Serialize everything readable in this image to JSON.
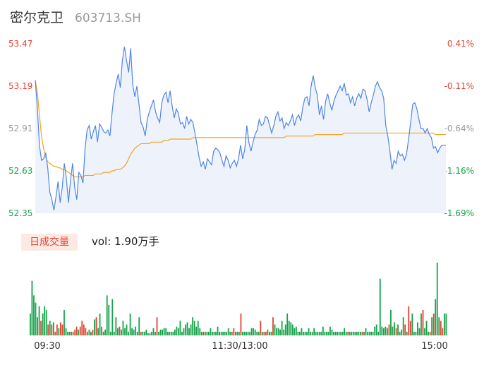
{
  "header": {
    "name": "密尔克卫",
    "code": "603713.SH"
  },
  "price_axis": {
    "left_labels": [
      "53.47",
      "53.19",
      "52.91",
      "52.63",
      "52.35"
    ],
    "right_labels": [
      "0.41%",
      "-0.11%",
      "-0.64%",
      "-1.16%",
      "-1.69%"
    ]
  },
  "time_axis": [
    "09:30",
    "11:30/13:00",
    "15:00"
  ],
  "volume": {
    "badge": "日成交量",
    "label": "vol: 1.90万手"
  },
  "colors": {
    "up": "#e5432f",
    "down": "#17a34a",
    "price_line": "#4e85e8",
    "avg_line": "#f3a321",
    "area": "#eef3fb",
    "muted": "#999999"
  },
  "chart_data": [
    {
      "type": "line",
      "title": "",
      "y_range": [
        52.35,
        53.47
      ],
      "series": [
        {
          "values": [
            53.23,
            53.05,
            52.8,
            52.7,
            52.71,
            52.75,
            52.65,
            52.49,
            52.44,
            52.37,
            52.46,
            52.56,
            52.42,
            52.52,
            52.68,
            52.58,
            52.42,
            52.57,
            52.68,
            52.52,
            52.44,
            52.62,
            52.6,
            52.55,
            52.78,
            52.9,
            52.93,
            52.84,
            52.89,
            52.93,
            52.82,
            52.94,
            52.92,
            52.89,
            52.88,
            52.9,
            52.86,
            53.01,
            53.14,
            53.21,
            53.27,
            53.18,
            53.36,
            53.45,
            53.36,
            53.28,
            53.44,
            53.2,
            53.12,
            53.19,
            53.07,
            52.95,
            52.92,
            52.86,
            52.97,
            53.02,
            53.06,
            53.1,
            53.02,
            52.98,
            52.95,
            53.08,
            53.13,
            53.15,
            53.08,
            53.16,
            53.06,
            52.98,
            53.04,
            53.01,
            52.94,
            52.95,
            52.91,
            52.99,
            52.94,
            52.97,
            52.95,
            52.88,
            52.8,
            52.72,
            52.66,
            52.69,
            52.64,
            52.71,
            52.69,
            52.67,
            52.76,
            52.78,
            52.77,
            52.75,
            52.7,
            52.66,
            52.73,
            52.7,
            52.65,
            52.68,
            52.7,
            52.66,
            52.71,
            52.8,
            52.71,
            52.77,
            52.93,
            52.82,
            52.76,
            52.82,
            52.87,
            52.9,
            52.97,
            52.93,
            52.94,
            52.99,
            52.98,
            52.93,
            52.88,
            52.93,
            52.99,
            53.02,
            52.96,
            52.98,
            52.91,
            52.95,
            52.93,
            52.96,
            53.0,
            52.93,
            52.98,
            53.0,
            52.96,
            53.05,
            53.11,
            53.12,
            53.06,
            53.19,
            53.26,
            53.18,
            53.13,
            53.0,
            53.06,
            52.97,
            53.09,
            53.14,
            53.08,
            53.03,
            53.09,
            53.13,
            53.16,
            53.19,
            53.16,
            53.21,
            53.13,
            53.14,
            53.08,
            53.12,
            53.06,
            53.11,
            53.14,
            53.11,
            53.17,
            53.16,
            53.1,
            53.02,
            53.08,
            53.13,
            53.19,
            53.22,
            53.18,
            53.16,
            53.11,
            52.93,
            52.86,
            52.76,
            52.64,
            52.7,
            52.68,
            52.76,
            52.73,
            52.74,
            52.7,
            52.74,
            52.84,
            52.95,
            53.07,
            53.08,
            53.04,
            52.97,
            52.91,
            52.91,
            52.88,
            52.91,
            52.87,
            52.85,
            52.78,
            52.79,
            52.75,
            52.78,
            52.8,
            52.8,
            52.8
          ]
        },
        {
          "values": [
            53.23,
            53.15,
            53.0,
            52.86,
            52.78,
            52.72,
            52.69,
            52.68,
            52.67,
            52.66,
            52.66,
            52.65,
            52.65,
            52.64,
            52.64,
            52.63,
            52.62,
            52.61,
            52.6,
            52.59,
            52.59,
            52.59,
            52.59,
            52.59,
            52.6,
            52.6,
            52.6,
            52.6,
            52.6,
            52.61,
            52.61,
            52.61,
            52.61,
            52.62,
            52.62,
            52.62,
            52.62,
            52.63,
            52.63,
            52.64,
            52.64,
            52.64,
            52.65,
            52.66,
            52.68,
            52.71,
            52.74,
            52.76,
            52.78,
            52.79,
            52.8,
            52.81,
            52.81,
            52.81,
            52.81,
            52.81,
            52.82,
            52.82,
            52.82,
            52.82,
            52.82,
            52.82,
            52.83,
            52.83,
            52.83,
            52.84,
            52.84,
            52.84,
            52.84,
            52.84,
            52.84,
            52.84,
            52.84,
            52.84,
            52.84,
            52.84,
            52.85,
            52.85,
            52.85,
            52.85,
            52.85,
            52.85,
            52.85,
            52.85,
            52.85,
            52.85,
            52.85,
            52.85,
            52.85,
            52.85,
            52.85,
            52.85,
            52.85,
            52.85,
            52.85,
            52.85,
            52.85,
            52.85,
            52.85,
            52.85,
            52.85,
            52.85,
            52.85,
            52.85,
            52.85,
            52.85,
            52.85,
            52.85,
            52.85,
            52.85,
            52.85,
            52.85,
            52.85,
            52.85,
            52.85,
            52.85,
            52.85,
            52.85,
            52.85,
            52.85,
            52.85,
            52.86,
            52.86,
            52.86,
            52.86,
            52.86,
            52.86,
            52.86,
            52.86,
            52.86,
            52.86,
            52.86,
            52.86,
            52.86,
            52.86,
            52.87,
            52.87,
            52.87,
            52.87,
            52.87,
            52.87,
            52.87,
            52.87,
            52.87,
            52.87,
            52.87,
            52.87,
            52.87,
            52.87,
            52.88,
            52.88,
            52.88,
            52.88,
            52.88,
            52.88,
            52.88,
            52.88,
            52.88,
            52.88,
            52.88,
            52.88,
            52.88,
            52.88,
            52.88,
            52.88,
            52.88,
            52.88,
            52.88,
            52.88,
            52.88,
            52.88,
            52.88,
            52.88,
            52.88,
            52.88,
            52.88,
            52.88,
            52.88,
            52.88,
            52.88,
            52.88,
            52.88,
            52.88,
            52.88,
            52.88,
            52.88,
            52.88,
            52.88,
            52.88,
            52.88,
            52.88,
            52.88,
            52.88,
            52.87,
            52.87,
            52.87,
            52.87,
            52.87,
            52.87
          ]
        }
      ]
    },
    {
      "type": "bar",
      "title": "",
      "ylim": [
        0,
        100
      ],
      "series": [
        {
          "values": [
            30,
            75,
            55,
            45,
            25,
            40,
            20,
            30,
            40,
            35,
            15,
            20,
            15,
            18,
            5,
            15,
            10,
            18,
            15,
            35,
            10,
            5,
            5,
            5,
            5,
            8,
            12,
            8,
            12,
            20,
            15,
            10,
            5,
            8,
            5,
            8,
            22,
            25,
            10,
            30,
            12,
            5,
            8,
            55,
            42,
            5,
            50,
            5,
            25,
            10,
            12,
            8,
            20,
            10,
            15,
            5,
            30,
            10,
            8,
            12,
            5,
            25,
            5,
            5,
            5,
            8,
            3,
            3,
            5,
            10,
            5,
            25,
            5,
            8,
            8,
            10,
            10,
            5,
            5,
            5,
            5,
            8,
            12,
            10,
            20,
            5,
            10,
            15,
            18,
            10,
            15,
            25,
            20,
            12,
            20,
            10,
            5,
            5,
            5,
            5,
            5,
            10,
            5,
            5,
            5,
            12,
            5,
            5,
            5,
            5,
            5,
            10,
            5,
            5,
            10,
            5,
            5,
            5,
            30,
            5,
            5,
            5,
            5,
            5,
            10,
            10,
            8,
            5,
            5,
            20,
            5,
            5,
            5,
            8,
            5,
            5,
            25,
            15,
            10,
            10,
            8,
            20,
            8,
            15,
            30,
            20,
            18,
            15,
            10,
            12,
            5,
            5,
            10,
            5,
            5,
            5,
            10,
            5,
            5,
            10,
            5,
            5,
            5,
            5,
            12,
            5,
            5,
            5,
            12,
            8,
            5,
            5,
            5,
            5,
            5,
            5,
            10,
            5,
            5,
            5,
            5,
            5,
            5,
            5,
            5,
            5,
            5,
            5,
            10,
            5,
            5,
            5,
            5,
            12,
            15,
            5,
            78,
            12,
            10,
            12,
            10,
            15,
            35,
            12,
            18,
            10,
            15,
            5,
            8,
            25,
            15,
            5,
            40,
            20,
            30,
            5,
            5,
            18,
            10,
            30,
            35,
            10,
            20,
            5,
            5,
            25,
            30,
            50,
            100,
            25,
            20,
            10,
            30,
            30
          ],
          "directions": [
            "d",
            "d",
            "d",
            "d",
            "d",
            "d",
            "u",
            "d",
            "d",
            "d",
            "u",
            "d",
            "u",
            "d",
            "u",
            "u",
            "d",
            "u",
            "u",
            "d",
            "d",
            "d",
            "d",
            "u",
            "d",
            "u",
            "u",
            "d",
            "u",
            "u",
            "u",
            "u",
            "u",
            "d",
            "d",
            "u",
            "d",
            "u",
            "d",
            "d",
            "u",
            "d",
            "d",
            "d",
            "d",
            "d",
            "d",
            "d",
            "d",
            "d",
            "u",
            "d",
            "d",
            "d",
            "d",
            "d",
            "d",
            "d",
            "d",
            "d",
            "d",
            "d",
            "u",
            "d",
            "d",
            "d",
            "d",
            "d",
            "d",
            "d",
            "d",
            "u",
            "d",
            "d",
            "d",
            "d",
            "d",
            "d",
            "d",
            "d",
            "d",
            "d",
            "d",
            "d",
            "d",
            "d",
            "d",
            "d",
            "d",
            "d",
            "d",
            "d",
            "d",
            "d",
            "d",
            "d",
            "d",
            "d",
            "u",
            "d",
            "d",
            "d",
            "d",
            "d",
            "d",
            "d",
            "d",
            "d",
            "d",
            "d",
            "d",
            "d",
            "d",
            "u",
            "u",
            "d",
            "d",
            "d",
            "u",
            "d",
            "d",
            "d",
            "d",
            "d",
            "d",
            "d",
            "d",
            "d",
            "d",
            "u",
            "d",
            "u",
            "u",
            "d",
            "d",
            "d",
            "u",
            "d",
            "d",
            "d",
            "d",
            "d",
            "d",
            "d",
            "d",
            "d",
            "d",
            "d",
            "d",
            "d",
            "d",
            "d",
            "d",
            "d",
            "d",
            "d",
            "d",
            "d",
            "d",
            "d",
            "d",
            "d",
            "d",
            "d",
            "d",
            "d",
            "d",
            "d",
            "d",
            "d",
            "d",
            "d",
            "d",
            "d",
            "d",
            "d",
            "d",
            "d",
            "u",
            "d",
            "d",
            "d",
            "d",
            "d",
            "d",
            "d",
            "u",
            "d",
            "d",
            "d",
            "d",
            "d",
            "d",
            "d",
            "d",
            "d",
            "d",
            "d",
            "d",
            "d",
            "d",
            "u",
            "d",
            "d",
            "d",
            "u",
            "d",
            "d",
            "d",
            "d",
            "u",
            "d",
            "u",
            "u",
            "d",
            "d",
            "d",
            "d",
            "d",
            "d",
            "u",
            "d",
            "d",
            "d",
            "u",
            "d",
            "u",
            "d",
            "d",
            "d",
            "u",
            "u"
          ]
        }
      ]
    }
  ]
}
